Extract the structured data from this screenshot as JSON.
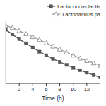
{
  "chart_data": {
    "type": "line",
    "x_label": "Time (h)",
    "x": [
      0,
      1,
      2,
      3,
      4,
      5,
      6,
      7,
      8,
      9,
      10,
      11,
      12,
      13,
      14
    ],
    "series": [
      {
        "name": "Lactococcus lactis",
        "color": "#555555",
        "marker": "square",
        "line_style": "solid",
        "values": [
          4.5,
          4.1,
          3.7,
          3.35,
          3.0,
          2.65,
          2.35,
          2.05,
          1.8,
          1.55,
          1.3,
          1.1,
          0.9,
          0.7,
          0.5
        ]
      },
      {
        "name": "Lactobacillus pa",
        "color": "#999999",
        "marker": "triangle",
        "line_style": "solid",
        "values": [
          4.85,
          4.65,
          4.4,
          4.15,
          3.9,
          3.65,
          3.38,
          3.1,
          2.85,
          2.6,
          2.35,
          2.1,
          1.9,
          1.7,
          1.5
        ]
      }
    ],
    "xlim": [
      0,
      14
    ],
    "ylim": [
      0,
      5.2
    ],
    "xticks": [
      2,
      4,
      6,
      8,
      10,
      12
    ],
    "tick_labels": "x",
    "legend": "top-right",
    "grid": false
  }
}
